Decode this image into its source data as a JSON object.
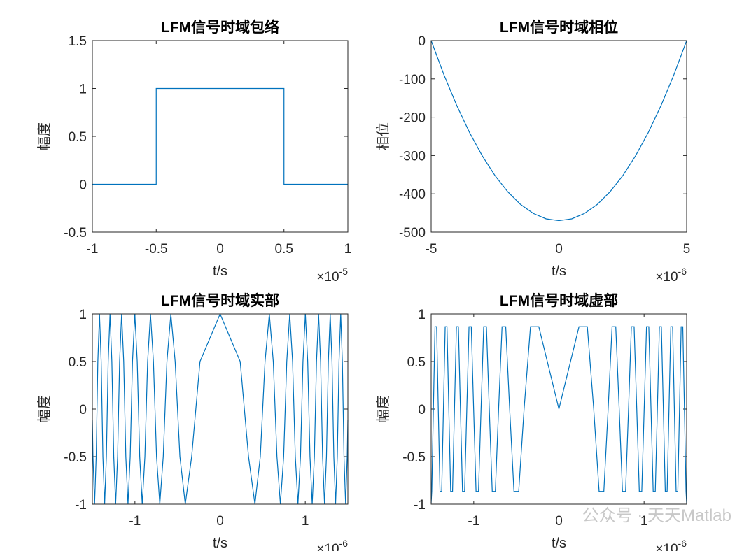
{
  "chart_data": [
    {
      "type": "line",
      "title": "LFM信号时域包络",
      "xlabel": "t/s",
      "ylabel": "幅度",
      "x_multiplier": {
        "base": "×10",
        "exponent": "-5"
      },
      "x": [
        -1,
        -0.5,
        -0.5,
        0.5,
        0.5,
        1
      ],
      "series": [
        {
          "color": "#0072bd",
          "values": [
            0,
            0,
            1,
            1,
            0,
            0
          ]
        }
      ],
      "xlim": [
        -1,
        1
      ],
      "ylim": [
        -0.5,
        1.5
      ],
      "xticks": [
        -1,
        -0.5,
        0,
        0.5,
        1
      ],
      "yticks": [
        -0.5,
        0,
        0.5,
        1,
        1.5
      ]
    },
    {
      "type": "line",
      "title": "LFM信号时域相位",
      "xlabel": "t/s",
      "ylabel": "相位",
      "x_multiplier": {
        "base": "×10",
        "exponent": "-6"
      },
      "x": [
        -5,
        -4.5,
        -4,
        -3.5,
        -3,
        -2.5,
        -2,
        -1.5,
        -1,
        -0.5,
        0,
        0.5,
        1,
        1.5,
        2,
        2.5,
        3,
        3.5,
        4,
        4.5,
        5
      ],
      "series": [
        {
          "color": "#0072bd",
          "values": [
            0,
            -89.3,
            -169.2,
            -239.7,
            -300.8,
            -352.5,
            -394.8,
            -427.7,
            -451.2,
            -465.3,
            -470,
            -465.3,
            -451.2,
            -427.7,
            -394.8,
            -352.5,
            -300.8,
            -239.7,
            -169.2,
            -89.3,
            0
          ]
        }
      ],
      "xlim": [
        -5,
        5
      ],
      "ylim": [
        -500,
        0
      ],
      "xticks": [
        -5,
        0,
        5
      ],
      "yticks": [
        -500,
        -400,
        -300,
        -200,
        -100,
        0
      ]
    },
    {
      "type": "line",
      "title": "LFM信号时域实部",
      "xlabel": "t/s",
      "ylabel": "幅度",
      "x_multiplier": {
        "base": "×10",
        "exponent": "-6"
      },
      "x": [
        -1.5,
        -1.4926,
        -1.4738,
        -1.4548,
        -1.4356,
        -1.4161,
        -1.3963,
        -1.3762,
        -1.3558,
        -1.3351,
        -1.3141,
        -1.2927,
        -1.2709,
        -1.2488,
        -1.2263,
        -1.2034,
        -1.18,
        -1.1562,
        -1.1319,
        -1.107,
        -1.0815,
        -1.0555,
        -1.0287,
        -1.0013,
        -0.9731,
        -0.944,
        -0.9141,
        -0.8831,
        -0.8509,
        -0.8176,
        -0.7828,
        -0.7463,
        -0.708,
        -0.6675,
        -0.6244,
        -0.5781,
        -0.5277,
        -0.472,
        -0.4088,
        -0.3338,
        -0.236,
        0,
        0.236,
        0.3338,
        0.4088,
        0.472,
        0.5277,
        0.5781,
        0.6244,
        0.6675,
        0.708,
        0.7463,
        0.7828,
        0.8176,
        0.8509,
        0.8831,
        0.9141,
        0.944,
        0.9731,
        1.0013,
        1.0287,
        1.0555,
        1.0815,
        1.107,
        1.1319,
        1.1562,
        1.18,
        1.2034,
        1.2263,
        1.2488,
        1.2709,
        1.2927,
        1.3141,
        1.3351,
        1.3558,
        1.3762,
        1.3963,
        1.4161,
        1.4356,
        1.4548,
        1.4738,
        1.4926,
        1.5
      ],
      "series": [
        {
          "color": "#0072bd",
          "values": [
            -0.11,
            -0.5,
            -1,
            -0.5,
            0.5,
            1,
            0.5,
            -0.5,
            -1,
            -0.5,
            0.5,
            1,
            0.5,
            -0.5,
            -1,
            -0.5,
            0.5,
            1,
            0.5,
            -0.5,
            -1,
            -0.5,
            0.5,
            1,
            0.5,
            -0.5,
            -1,
            -0.5,
            0.5,
            1,
            0.5,
            -0.5,
            -1,
            -0.5,
            0.5,
            1,
            0.5,
            -0.5,
            -1,
            -0.5,
            0.5,
            1,
            0.5,
            -0.5,
            -1,
            -0.5,
            0.5,
            1,
            0.5,
            -0.5,
            -1,
            -0.5,
            0.5,
            1,
            0.5,
            -0.5,
            -1,
            -0.5,
            0.5,
            1,
            0.5,
            -0.5,
            -1,
            -0.5,
            0.5,
            1,
            0.5,
            -0.5,
            -1,
            -0.5,
            0.5,
            1,
            0.5,
            -0.5,
            -1,
            -0.5,
            0.5,
            1,
            0.5,
            -0.5,
            -1,
            -0.5,
            -0.11
          ]
        }
      ],
      "xlim": [
        -1.5,
        1.5
      ],
      "ylim": [
        -1,
        1
      ],
      "xticks": [
        -1,
        0,
        1
      ],
      "yticks": [
        -1,
        -0.5,
        0,
        0.5,
        1
      ]
    },
    {
      "type": "line",
      "title": "LFM信号时域虚部",
      "xlabel": "t/s",
      "ylabel": "幅度",
      "x_multiplier": {
        "base": "×10",
        "exponent": "-6"
      },
      "x": [
        -1.5,
        -1.4926,
        -1.4738,
        -1.4548,
        -1.4356,
        -1.4161,
        -1.3963,
        -1.3762,
        -1.3558,
        -1.3351,
        -1.3141,
        -1.2927,
        -1.2709,
        -1.2488,
        -1.2263,
        -1.2034,
        -1.18,
        -1.1562,
        -1.1319,
        -1.107,
        -1.0815,
        -1.0555,
        -1.0287,
        -1.0013,
        -0.9731,
        -0.944,
        -0.9141,
        -0.8831,
        -0.8509,
        -0.8176,
        -0.7828,
        -0.7463,
        -0.708,
        -0.6675,
        -0.6244,
        -0.5781,
        -0.5277,
        -0.472,
        -0.4088,
        -0.3338,
        -0.236,
        0,
        0.236,
        0.3338,
        0.4088,
        0.472,
        0.5277,
        0.5781,
        0.6244,
        0.6675,
        0.708,
        0.7463,
        0.7828,
        0.8176,
        0.8509,
        0.8831,
        0.9141,
        0.944,
        0.9731,
        1.0013,
        1.0287,
        1.0555,
        1.0815,
        1.107,
        1.1319,
        1.1562,
        1.18,
        1.2034,
        1.2263,
        1.2488,
        1.2709,
        1.2927,
        1.3141,
        1.3351,
        1.3558,
        1.3762,
        1.3963,
        1.4161,
        1.4356,
        1.4548,
        1.4738,
        1.4926,
        1.5
      ],
      "series": [
        {
          "color": "#0072bd",
          "values": [
            -0.99,
            -0.866,
            0,
            0.866,
            0.866,
            0,
            -0.866,
            -0.866,
            0,
            0.866,
            0.866,
            0,
            -0.866,
            -0.866,
            0,
            0.866,
            0.866,
            0,
            -0.866,
            -0.866,
            0,
            0.866,
            0.866,
            0,
            -0.866,
            -0.866,
            0,
            0.866,
            0.866,
            0,
            -0.866,
            -0.866,
            0,
            0.866,
            0.866,
            0,
            -0.866,
            -0.866,
            0,
            0.866,
            0.866,
            0,
            0.866,
            0.866,
            0,
            -0.866,
            -0.866,
            0,
            0.866,
            0.866,
            0,
            -0.866,
            -0.866,
            0,
            0.866,
            0.866,
            0,
            -0.866,
            -0.866,
            0,
            0.866,
            0.866,
            0,
            -0.866,
            -0.866,
            0,
            0.866,
            0.866,
            0,
            -0.866,
            -0.866,
            0,
            0.866,
            0.866,
            0,
            -0.866,
            -0.866,
            0,
            0.866,
            0.866,
            0,
            -0.866,
            -0.99
          ]
        }
      ],
      "xlim": [
        -1.5,
        1.5
      ],
      "ylim": [
        -1,
        1
      ],
      "xticks": [
        -1,
        0,
        1
      ],
      "yticks": [
        -1,
        -0.5,
        0,
        0.5,
        1
      ]
    }
  ],
  "watermark": "公众号 · 天天Matlab"
}
